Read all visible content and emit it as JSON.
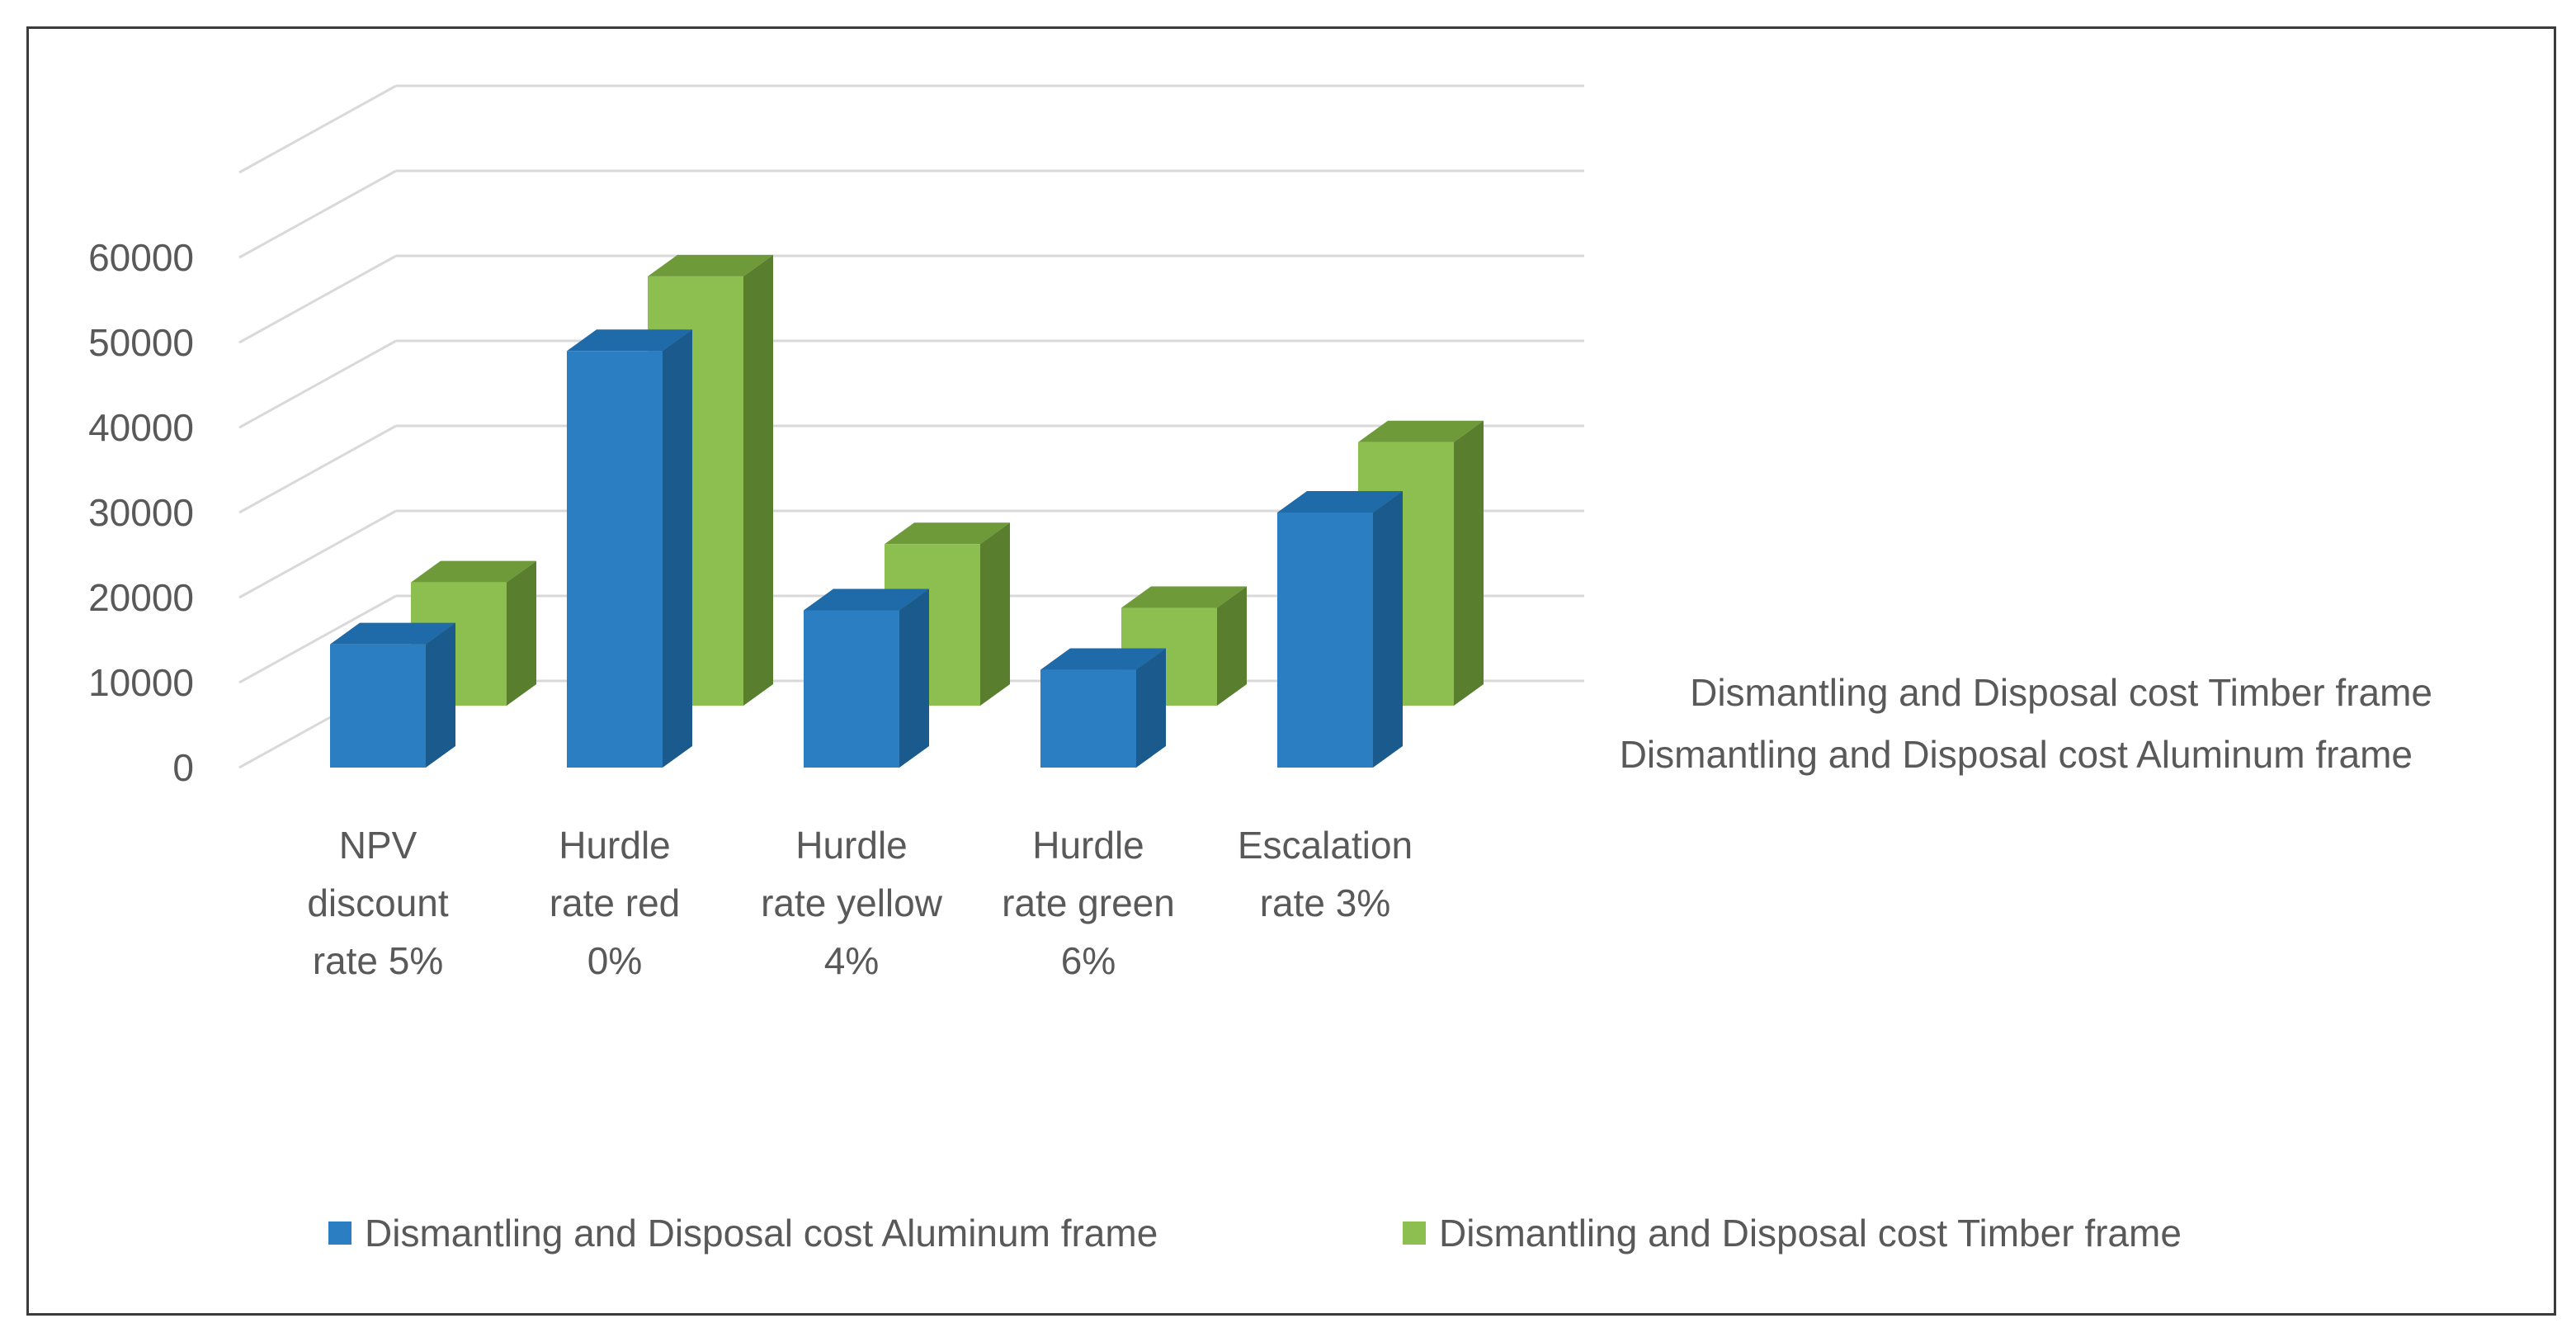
{
  "chart_data": {
    "type": "bar",
    "subtype": "3d-clustered-column",
    "title": "",
    "xlabel": "",
    "ylabel": "",
    "ylim": [
      0,
      60000
    ],
    "yticks": [
      "0",
      "10000",
      "20000",
      "30000",
      "40000",
      "50000",
      "60000"
    ],
    "categories": [
      [
        "NPV",
        "discount",
        "rate 5%"
      ],
      [
        "Hurdle",
        "rate red",
        "0%"
      ],
      [
        "Hurdle",
        "rate yellow",
        "4%"
      ],
      [
        "Hurdle",
        "rate green",
        "6%"
      ],
      [
        "Escalation",
        "rate 3%"
      ]
    ],
    "series": [
      {
        "name": "Dismantling and Disposal cost Aluminum frame",
        "values": [
          14500,
          49000,
          18500,
          11500,
          30000
        ],
        "color": "#2a7ec1",
        "side_color": "#1b5a8c",
        "top_color": "#1f6aa8"
      },
      {
        "name": "Dismantling and Disposal cost Timber frame",
        "values": [
          14500,
          50500,
          19000,
          11500,
          31000
        ],
        "color": "#8cbf4f",
        "side_color": "#587e2e",
        "top_color": "#6e9a3a"
      }
    ],
    "depth_labels": [
      "Dismantling and Disposal cost Timber frame",
      "Dismantling and Disposal cost Aluminum frame"
    ],
    "grid": true,
    "legend_position": "bottom"
  }
}
